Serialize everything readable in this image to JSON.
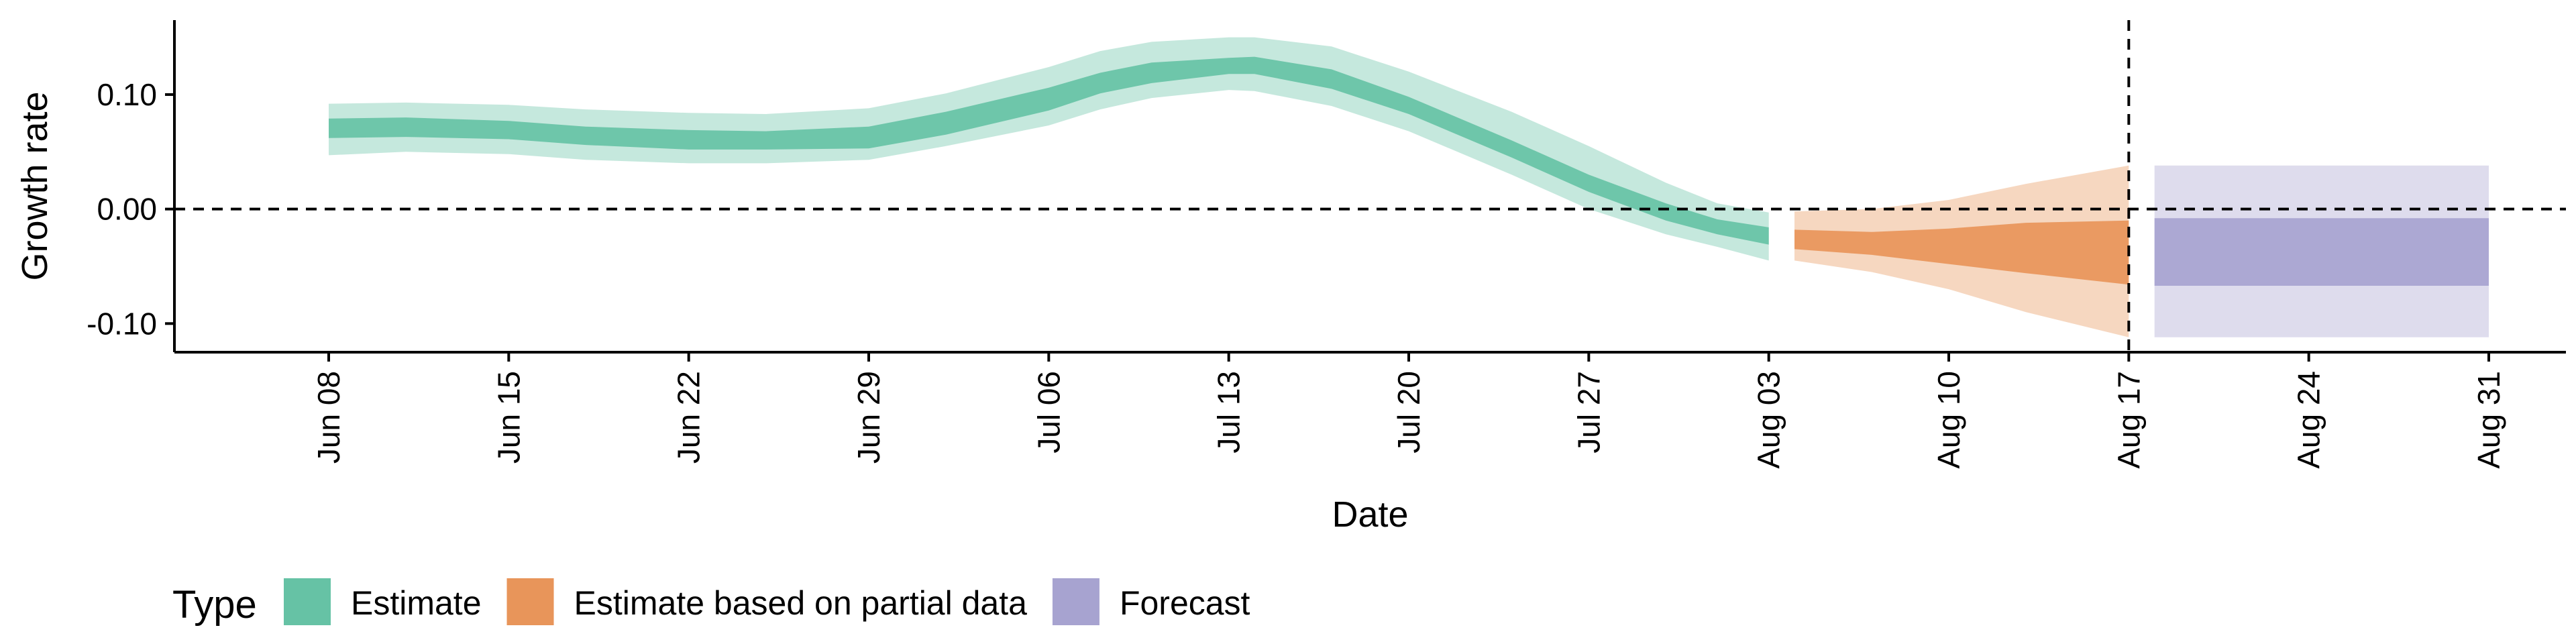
{
  "chart_data": {
    "type": "area",
    "xlabel": "Date",
    "ylabel": "Growth rate",
    "ylim": [
      -0.125,
      0.165
    ],
    "xlim": [
      "2020-06-02",
      "2020-09-03"
    ],
    "x_ticks": [
      "Jun 08",
      "Jun 15",
      "Jun 22",
      "Jun 29",
      "Jul 06",
      "Jul 13",
      "Jul 20",
      "Jul 27",
      "Aug 03",
      "Aug 10",
      "Aug 17",
      "Aug 24",
      "Aug 31"
    ],
    "x_tick_dates": [
      "2020-06-08",
      "2020-06-15",
      "2020-06-22",
      "2020-06-29",
      "2020-07-06",
      "2020-07-13",
      "2020-07-20",
      "2020-07-27",
      "2020-08-03",
      "2020-08-10",
      "2020-08-17",
      "2020-08-24",
      "2020-08-31"
    ],
    "y_ticks": [
      0.1,
      0.0,
      -0.1
    ],
    "y_tick_labels": [
      "0.10",
      "0.00",
      "-0.10"
    ],
    "hline": 0,
    "vline": "2020-08-17",
    "grid": false,
    "legend": {
      "title": "Type",
      "position": "bottom-left",
      "entries": [
        "Estimate",
        "Estimate based on partial data",
        "Forecast"
      ]
    },
    "colors": {
      "Estimate": "#66c2a5",
      "Estimate based on partial data": "#e8955a",
      "Forecast": "#a7a3d0"
    },
    "series": [
      {
        "name": "Estimate",
        "x": [
          "2020-06-08",
          "2020-06-11",
          "2020-06-15",
          "2020-06-18",
          "2020-06-22",
          "2020-06-25",
          "2020-06-29",
          "2020-07-02",
          "2020-07-06",
          "2020-07-08",
          "2020-07-10",
          "2020-07-13",
          "2020-07-14",
          "2020-07-17",
          "2020-07-20",
          "2020-07-24",
          "2020-07-27",
          "2020-07-30",
          "2020-08-01",
          "2020-08-03"
        ],
        "lower90": [
          0.047,
          0.05,
          0.048,
          0.043,
          0.04,
          0.04,
          0.043,
          0.055,
          0.073,
          0.087,
          0.097,
          0.104,
          0.103,
          0.09,
          0.068,
          0.03,
          0.0,
          -0.022,
          -0.033,
          -0.045
        ],
        "lower50": [
          0.062,
          0.063,
          0.061,
          0.056,
          0.052,
          0.052,
          0.053,
          0.065,
          0.086,
          0.101,
          0.11,
          0.118,
          0.118,
          0.105,
          0.083,
          0.045,
          0.015,
          -0.01,
          -0.022,
          -0.031
        ],
        "upper50": [
          0.079,
          0.08,
          0.077,
          0.072,
          0.069,
          0.068,
          0.072,
          0.085,
          0.106,
          0.119,
          0.128,
          0.132,
          0.133,
          0.122,
          0.098,
          0.06,
          0.03,
          0.005,
          -0.009,
          -0.016
        ],
        "upper90": [
          0.092,
          0.093,
          0.091,
          0.087,
          0.084,
          0.083,
          0.088,
          0.101,
          0.124,
          0.138,
          0.146,
          0.15,
          0.15,
          0.142,
          0.12,
          0.085,
          0.055,
          0.023,
          0.005,
          -0.003
        ]
      },
      {
        "name": "Estimate based on partial data",
        "x": [
          "2020-08-04",
          "2020-08-07",
          "2020-08-10",
          "2020-08-13",
          "2020-08-17"
        ],
        "lower90": [
          -0.045,
          -0.055,
          -0.07,
          -0.09,
          -0.112
        ],
        "lower50": [
          -0.035,
          -0.04,
          -0.048,
          -0.056,
          -0.066
        ],
        "upper50": [
          -0.018,
          -0.02,
          -0.017,
          -0.012,
          -0.01
        ],
        "upper90": [
          -0.002,
          0.0,
          0.008,
          0.022,
          0.038
        ]
      },
      {
        "name": "Forecast",
        "x": [
          "2020-08-18",
          "2020-08-31"
        ],
        "lower90": [
          -0.112,
          -0.112
        ],
        "lower50": [
          -0.067,
          -0.067
        ],
        "upper50": [
          -0.008,
          -0.008
        ],
        "upper90": [
          0.038,
          0.038
        ]
      }
    ]
  }
}
